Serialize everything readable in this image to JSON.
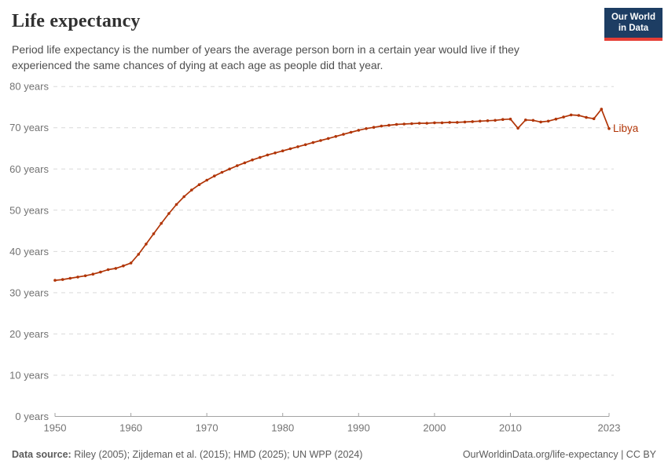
{
  "header": {
    "title": "Life expectancy",
    "subtitle": "Period life expectancy is the number of years the average person born in a certain year would live if they experienced the same chances of dying at each age as people did that year.",
    "logo": {
      "line1": "Our World",
      "line2": "in Data",
      "bg_color": "#1d3d63",
      "accent_color": "#e63e36"
    }
  },
  "chart_data": {
    "type": "line",
    "title": "Life expectancy",
    "xlabel": "",
    "ylabel": "",
    "xlim": [
      1950,
      2023
    ],
    "ylim": [
      0,
      80
    ],
    "grid": "horizontal-dashed",
    "legend": "end-of-line-label",
    "x_ticks": [
      1950,
      1960,
      1970,
      1980,
      1990,
      2000,
      2010,
      2023
    ],
    "y_ticks": [
      0,
      10,
      20,
      30,
      40,
      50,
      60,
      70,
      80
    ],
    "y_tick_suffix": " years",
    "series": [
      {
        "name": "Libya",
        "color": "#b13507",
        "x": [
          1950,
          1951,
          1952,
          1953,
          1954,
          1955,
          1956,
          1957,
          1958,
          1959,
          1960,
          1961,
          1962,
          1963,
          1964,
          1965,
          1966,
          1967,
          1968,
          1969,
          1970,
          1971,
          1972,
          1973,
          1974,
          1975,
          1976,
          1977,
          1978,
          1979,
          1980,
          1981,
          1982,
          1983,
          1984,
          1985,
          1986,
          1987,
          1988,
          1989,
          1990,
          1991,
          1992,
          1993,
          1994,
          1995,
          1996,
          1997,
          1998,
          1999,
          2000,
          2001,
          2002,
          2003,
          2004,
          2005,
          2006,
          2007,
          2008,
          2009,
          2010,
          2011,
          2012,
          2013,
          2014,
          2015,
          2016,
          2017,
          2018,
          2019,
          2020,
          2021,
          2022,
          2023
        ],
        "values": [
          33.0,
          33.2,
          33.5,
          33.8,
          34.1,
          34.5,
          35.0,
          35.6,
          35.9,
          36.5,
          37.2,
          39.3,
          41.8,
          44.3,
          46.8,
          49.2,
          51.4,
          53.3,
          54.9,
          56.2,
          57.3,
          58.3,
          59.2,
          60.0,
          60.8,
          61.5,
          62.2,
          62.8,
          63.4,
          63.9,
          64.4,
          64.9,
          65.4,
          65.9,
          66.4,
          66.9,
          67.4,
          67.9,
          68.4,
          68.9,
          69.4,
          69.8,
          70.1,
          70.4,
          70.6,
          70.8,
          70.9,
          71.0,
          71.1,
          71.1,
          71.2,
          71.2,
          71.3,
          71.3,
          71.4,
          71.5,
          71.6,
          71.7,
          71.8,
          72.0,
          72.1,
          69.9,
          71.9,
          71.8,
          71.4,
          71.6,
          72.1,
          72.6,
          73.1,
          73.0,
          72.5,
          72.2,
          74.5,
          69.8
        ]
      }
    ]
  },
  "footer": {
    "source_label": "Data source:",
    "source_text": " Riley (2005); Zijdeman et al. (2015); HMD (2025); UN WPP (2024)",
    "link_text": "OurWorldinData.org/life-expectancy | CC BY"
  },
  "colors": {
    "line": "#b13507",
    "grid": "#d9d9d9",
    "axis": "#a3a3a3",
    "tick_label": "#737373"
  }
}
